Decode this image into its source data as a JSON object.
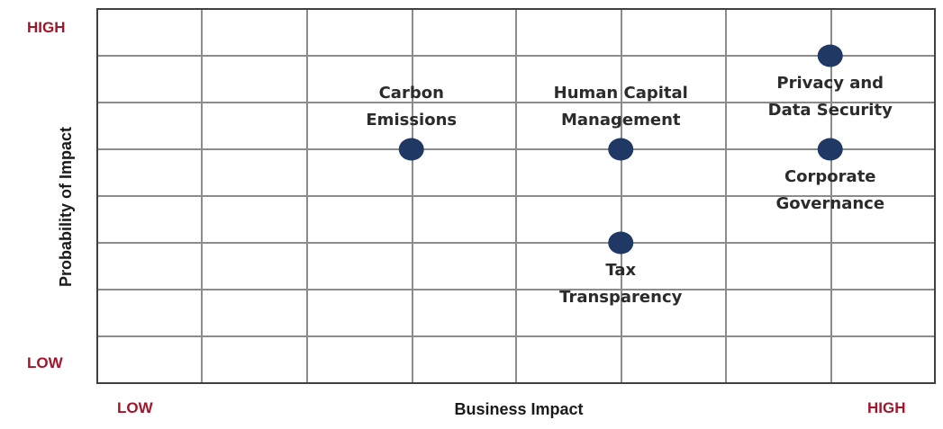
{
  "colors": {
    "extreme_label": "#a0162b",
    "marker": "#1f3864",
    "grid": "#8c8c8c",
    "border": "#404040"
  },
  "axes": {
    "y_high": "HIGH",
    "y_low": "LOW",
    "x_low": "LOW",
    "x_high": "HIGH"
  },
  "chart_data": {
    "type": "scatter",
    "title": "",
    "xlabel": "Business Impact",
    "ylabel": "Probability of Impact",
    "xlim": [
      0,
      8
    ],
    "ylim": [
      0,
      8
    ],
    "grid": true,
    "points": [
      {
        "label_lines": [
          "Carbon",
          "Emissions"
        ],
        "x": 3,
        "y": 5,
        "label_pos": "above"
      },
      {
        "label_lines": [
          "Human Capital",
          "Management"
        ],
        "x": 5,
        "y": 5,
        "label_pos": "above"
      },
      {
        "label_lines": [
          "Privacy and",
          "Data Security"
        ],
        "x": 7,
        "y": 7,
        "label_pos": "below"
      },
      {
        "label_lines": [
          "Corporate",
          "Governance"
        ],
        "x": 7,
        "y": 5,
        "label_pos": "below"
      },
      {
        "label_lines": [
          "Tax",
          "Transparency"
        ],
        "x": 5,
        "y": 3,
        "label_pos": "below"
      }
    ]
  }
}
